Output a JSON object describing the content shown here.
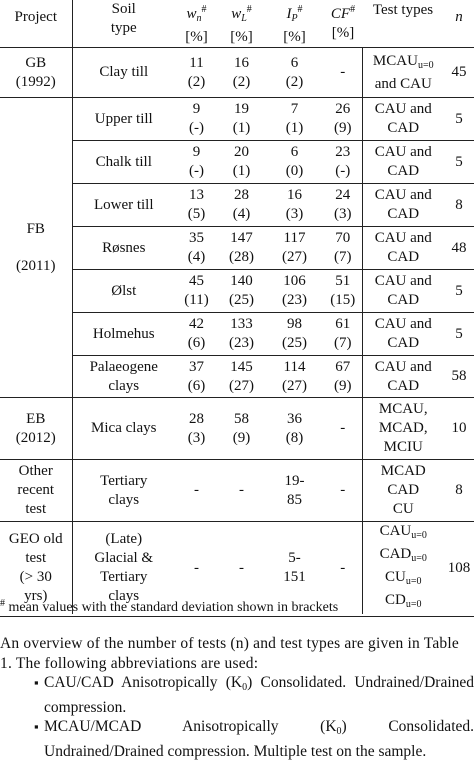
{
  "header": {
    "project": "Project",
    "soil_type": [
      "Soil",
      "type"
    ],
    "wn": {
      "main": "w",
      "sub": "n",
      "sup": "#",
      "unit": "[%]"
    },
    "wl": {
      "main": "w",
      "sub": "L",
      "sup": "#",
      "unit": "[%]"
    },
    "ip": {
      "main": "I",
      "sub": "P",
      "sup": "#",
      "unit": "[%]"
    },
    "cf": {
      "main": "CF",
      "sup": "#",
      "unit": "[%]"
    },
    "test_types": "Test types",
    "n": "n"
  },
  "rows": [
    {
      "soil": [
        "Clay till"
      ],
      "wn": [
        "11",
        "(2)"
      ],
      "wl": [
        "16",
        "(2)"
      ],
      "ip": [
        "6",
        "(2)"
      ],
      "cf": [
        "-"
      ]
    },
    {
      "soil": [
        "Upper till"
      ],
      "wn": [
        "9",
        "(-)"
      ],
      "wl": [
        "19",
        "(1)"
      ],
      "ip": [
        "7",
        "(1)"
      ],
      "cf": [
        "26",
        "(9)"
      ],
      "tests": [
        "CAU and",
        "CAD"
      ],
      "n": "5"
    },
    {
      "soil": [
        "Chalk till"
      ],
      "wn": [
        "9",
        "(-)"
      ],
      "wl": [
        "20",
        "(1)"
      ],
      "ip": [
        "6",
        "(0)"
      ],
      "cf": [
        "23",
        "(-)"
      ],
      "tests": [
        "CAU and",
        "CAD"
      ],
      "n": "5"
    },
    {
      "soil": [
        "Lower till"
      ],
      "wn": [
        "13",
        "(5)"
      ],
      "wl": [
        "28",
        "(4)"
      ],
      "ip": [
        "16",
        "(3)"
      ],
      "cf": [
        "24",
        "(3)"
      ],
      "tests": [
        "CAU and",
        "CAD"
      ],
      "n": "8"
    },
    {
      "soil": [
        "Røsnes"
      ],
      "wn": [
        "35",
        "(4)"
      ],
      "wl": [
        "147",
        "(28)"
      ],
      "ip": [
        "117",
        "(27)"
      ],
      "cf": [
        "70",
        "(7)"
      ],
      "tests": [
        "CAU and",
        "CAD"
      ],
      "n": "48"
    },
    {
      "soil": [
        "Ølst"
      ],
      "wn": [
        "45",
        "(11)"
      ],
      "wl": [
        "140",
        "(25)"
      ],
      "ip": [
        "106",
        "(23)"
      ],
      "cf": [
        "51",
        "(15)"
      ],
      "tests": [
        "CAU and",
        "CAD"
      ],
      "n": "5"
    },
    {
      "soil": [
        "Holmehus"
      ],
      "wn": [
        "42",
        "(6)"
      ],
      "wl": [
        "133",
        "(23)"
      ],
      "ip": [
        "98",
        "(25)"
      ],
      "cf": [
        "61",
        "(7)"
      ],
      "tests": [
        "CAU and",
        "CAD"
      ],
      "n": "5"
    },
    {
      "soil": [
        "Palaeogene",
        "clays"
      ],
      "wn": [
        "37",
        "(6)"
      ],
      "wl": [
        "145",
        "(27)"
      ],
      "ip": [
        "114",
        "(27)"
      ],
      "cf": [
        "67",
        "(9)"
      ],
      "tests": [
        "CAU and",
        "CAD"
      ],
      "n": "58"
    },
    {
      "soil": [
        "Mica clays"
      ],
      "wn": [
        "28",
        "(3)"
      ],
      "wl": [
        "58",
        "(9)"
      ],
      "ip": [
        "36",
        "(8)"
      ],
      "cf": [
        "-"
      ],
      "tests": [
        "MCAU,",
        "MCAD,",
        "MCIU"
      ],
      "n": "10"
    },
    {
      "soil": [
        "Tertiary",
        "clays"
      ],
      "wn": [
        "-"
      ],
      "wl": [
        "-"
      ],
      "ip": [
        "19-",
        "85"
      ],
      "cf": [
        "-"
      ],
      "tests": [
        "MCAD",
        "CAD",
        "CU"
      ],
      "n": "8"
    },
    {
      "soil": [
        "(Late)",
        "Glacial &",
        "Tertiary",
        "clays"
      ],
      "wn": [
        "-"
      ],
      "wl": [
        "-"
      ],
      "ip": [
        "5-",
        "151"
      ],
      "cf": [
        "-"
      ],
      "n": "108"
    }
  ],
  "projects": {
    "gb": [
      "GB",
      "(1992)"
    ],
    "fb": [
      "FB",
      "(2011)"
    ],
    "eb": [
      "EB",
      "(2012)"
    ],
    "other": [
      "Other",
      "recent",
      "test"
    ],
    "geo": [
      "GEO old",
      "test",
      "(> 30",
      "yrs)"
    ]
  },
  "row0_tests": {
    "line1_main": "MCAU",
    "line1_sub": "u=0",
    "line2": "and CAU",
    "n": "45"
  },
  "geo_tests": [
    {
      "main": "CAU",
      "sub": "u=0"
    },
    {
      "main": "CAD",
      "sub": "u=0"
    },
    {
      "main": "CU",
      "sub": "u=0"
    },
    {
      "main": "CD",
      "sub": "u=0"
    }
  ],
  "footnote": {
    "mark": "#",
    "text": " mean values with the standard deviation shown in brackets"
  },
  "paragraph": {
    "intro": "An overview of the number of tests (n) and test types are given in Table 1. The following abbreviations are used:",
    "bullets": [
      {
        "pre": "CAU/CAD Anisotropically (K",
        "sub": "0",
        "post": ") Consolidated. Undrained/Drained compression."
      },
      {
        "pre": "MCAU/MCAD Anisotropically (K",
        "sub": "0",
        "post": ") Consolidated. Undrained/Drained compression. Multiple test on the sample."
      }
    ],
    "bullet_char": "▪"
  }
}
